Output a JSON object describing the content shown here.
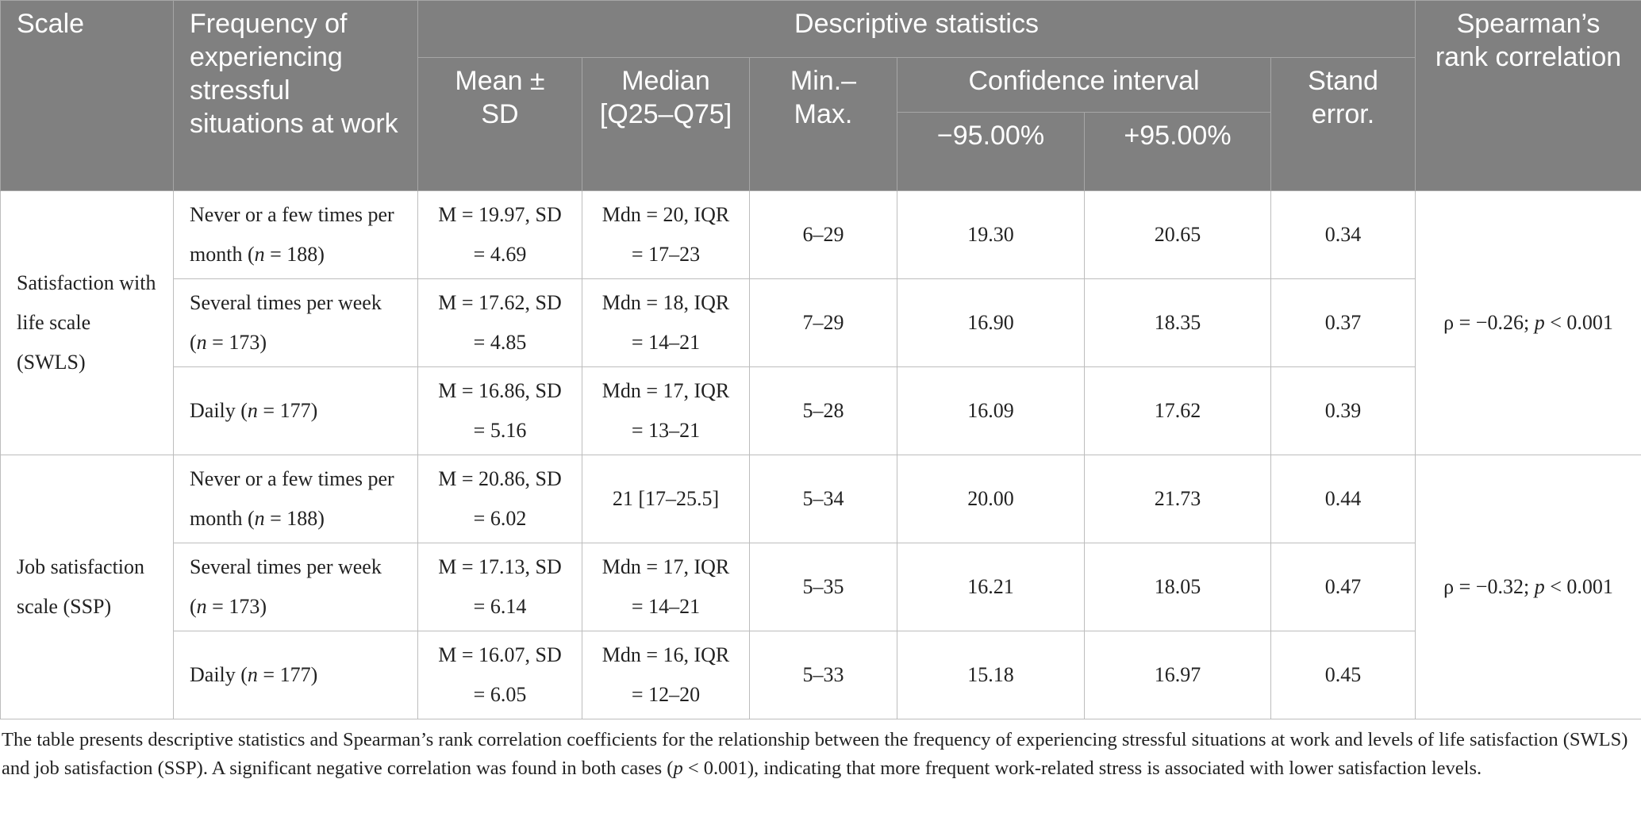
{
  "header": {
    "scale": "Scale",
    "frequency": "Frequency of experiencing stressful situations at work",
    "descriptive": "Descriptive statistics",
    "mean": "Mean ± SD",
    "median": "Median [Q25–Q75]",
    "minmax": "Min.–Max.",
    "ci": "Confidence interval",
    "ci_low": "−95.00%",
    "ci_high": "+95.00%",
    "se": "Stand error.",
    "spearman": "Spearman’s rank correlation"
  },
  "groups": [
    {
      "scale": "Satisfaction with life scale (SWLS)",
      "correlation": [
        "ρ = −0.26; ",
        "p",
        " < 0.001"
      ],
      "rows": [
        {
          "frequency": [
            "Never or a few times per month (",
            "n",
            " = 188)"
          ],
          "mean": "M = 19.97, SD = 4.69",
          "median": "Mdn = 20, IQR = 17–23",
          "minmax": "6–29",
          "ci_low": "19.30",
          "ci_high": "20.65",
          "se": "0.34"
        },
        {
          "frequency": [
            "Several times per week (",
            "n",
            " = 173)"
          ],
          "mean": "M = 17.62, SD = 4.85",
          "median": "Mdn = 18, IQR = 14–21",
          "minmax": "7–29",
          "ci_low": "16.90",
          "ci_high": "18.35",
          "se": "0.37"
        },
        {
          "frequency": [
            "Daily (",
            "n",
            " = 177)"
          ],
          "mean": "M = 16.86, SD = 5.16",
          "median": "Mdn = 17, IQR = 13–21",
          "minmax": "5–28",
          "ci_low": "16.09",
          "ci_high": "17.62",
          "se": "0.39"
        }
      ]
    },
    {
      "scale": "Job satisfaction scale (SSP)",
      "correlation": [
        "ρ = −0.32; ",
        "p",
        " < 0.001"
      ],
      "rows": [
        {
          "frequency": [
            "Never or a few times per month (",
            "n",
            " = 188)"
          ],
          "mean": "M = 20.86, SD = 6.02",
          "median": "21 [17–25.5]",
          "minmax": "5–34",
          "ci_low": "20.00",
          "ci_high": "21.73",
          "se": "0.44"
        },
        {
          "frequency": [
            "Several times per week (",
            "n",
            " = 173)"
          ],
          "mean": "M = 17.13, SD = 6.14",
          "median": "Mdn = 17, IQR = 14–21",
          "minmax": "5–35",
          "ci_low": "16.21",
          "ci_high": "18.05",
          "se": "0.47"
        },
        {
          "frequency": [
            "Daily (",
            "n",
            " = 177)"
          ],
          "mean": "M = 16.07, SD = 6.05",
          "median": "Mdn = 16, IQR = 12–20",
          "minmax": "5–33",
          "ci_low": "15.18",
          "ci_high": "16.97",
          "se": "0.45"
        }
      ]
    }
  ],
  "footnote": [
    "The table presents descriptive statistics and Spearman’s rank correlation coefficients for the relationship between the frequency of experiencing stressful situations at work and levels of life satisfaction (SWLS) and job satisfaction (SSP). A significant negative correlation was found in both cases (",
    "p",
    " < 0.001), indicating that more frequent work-related stress is associated with lower satisfaction levels."
  ]
}
